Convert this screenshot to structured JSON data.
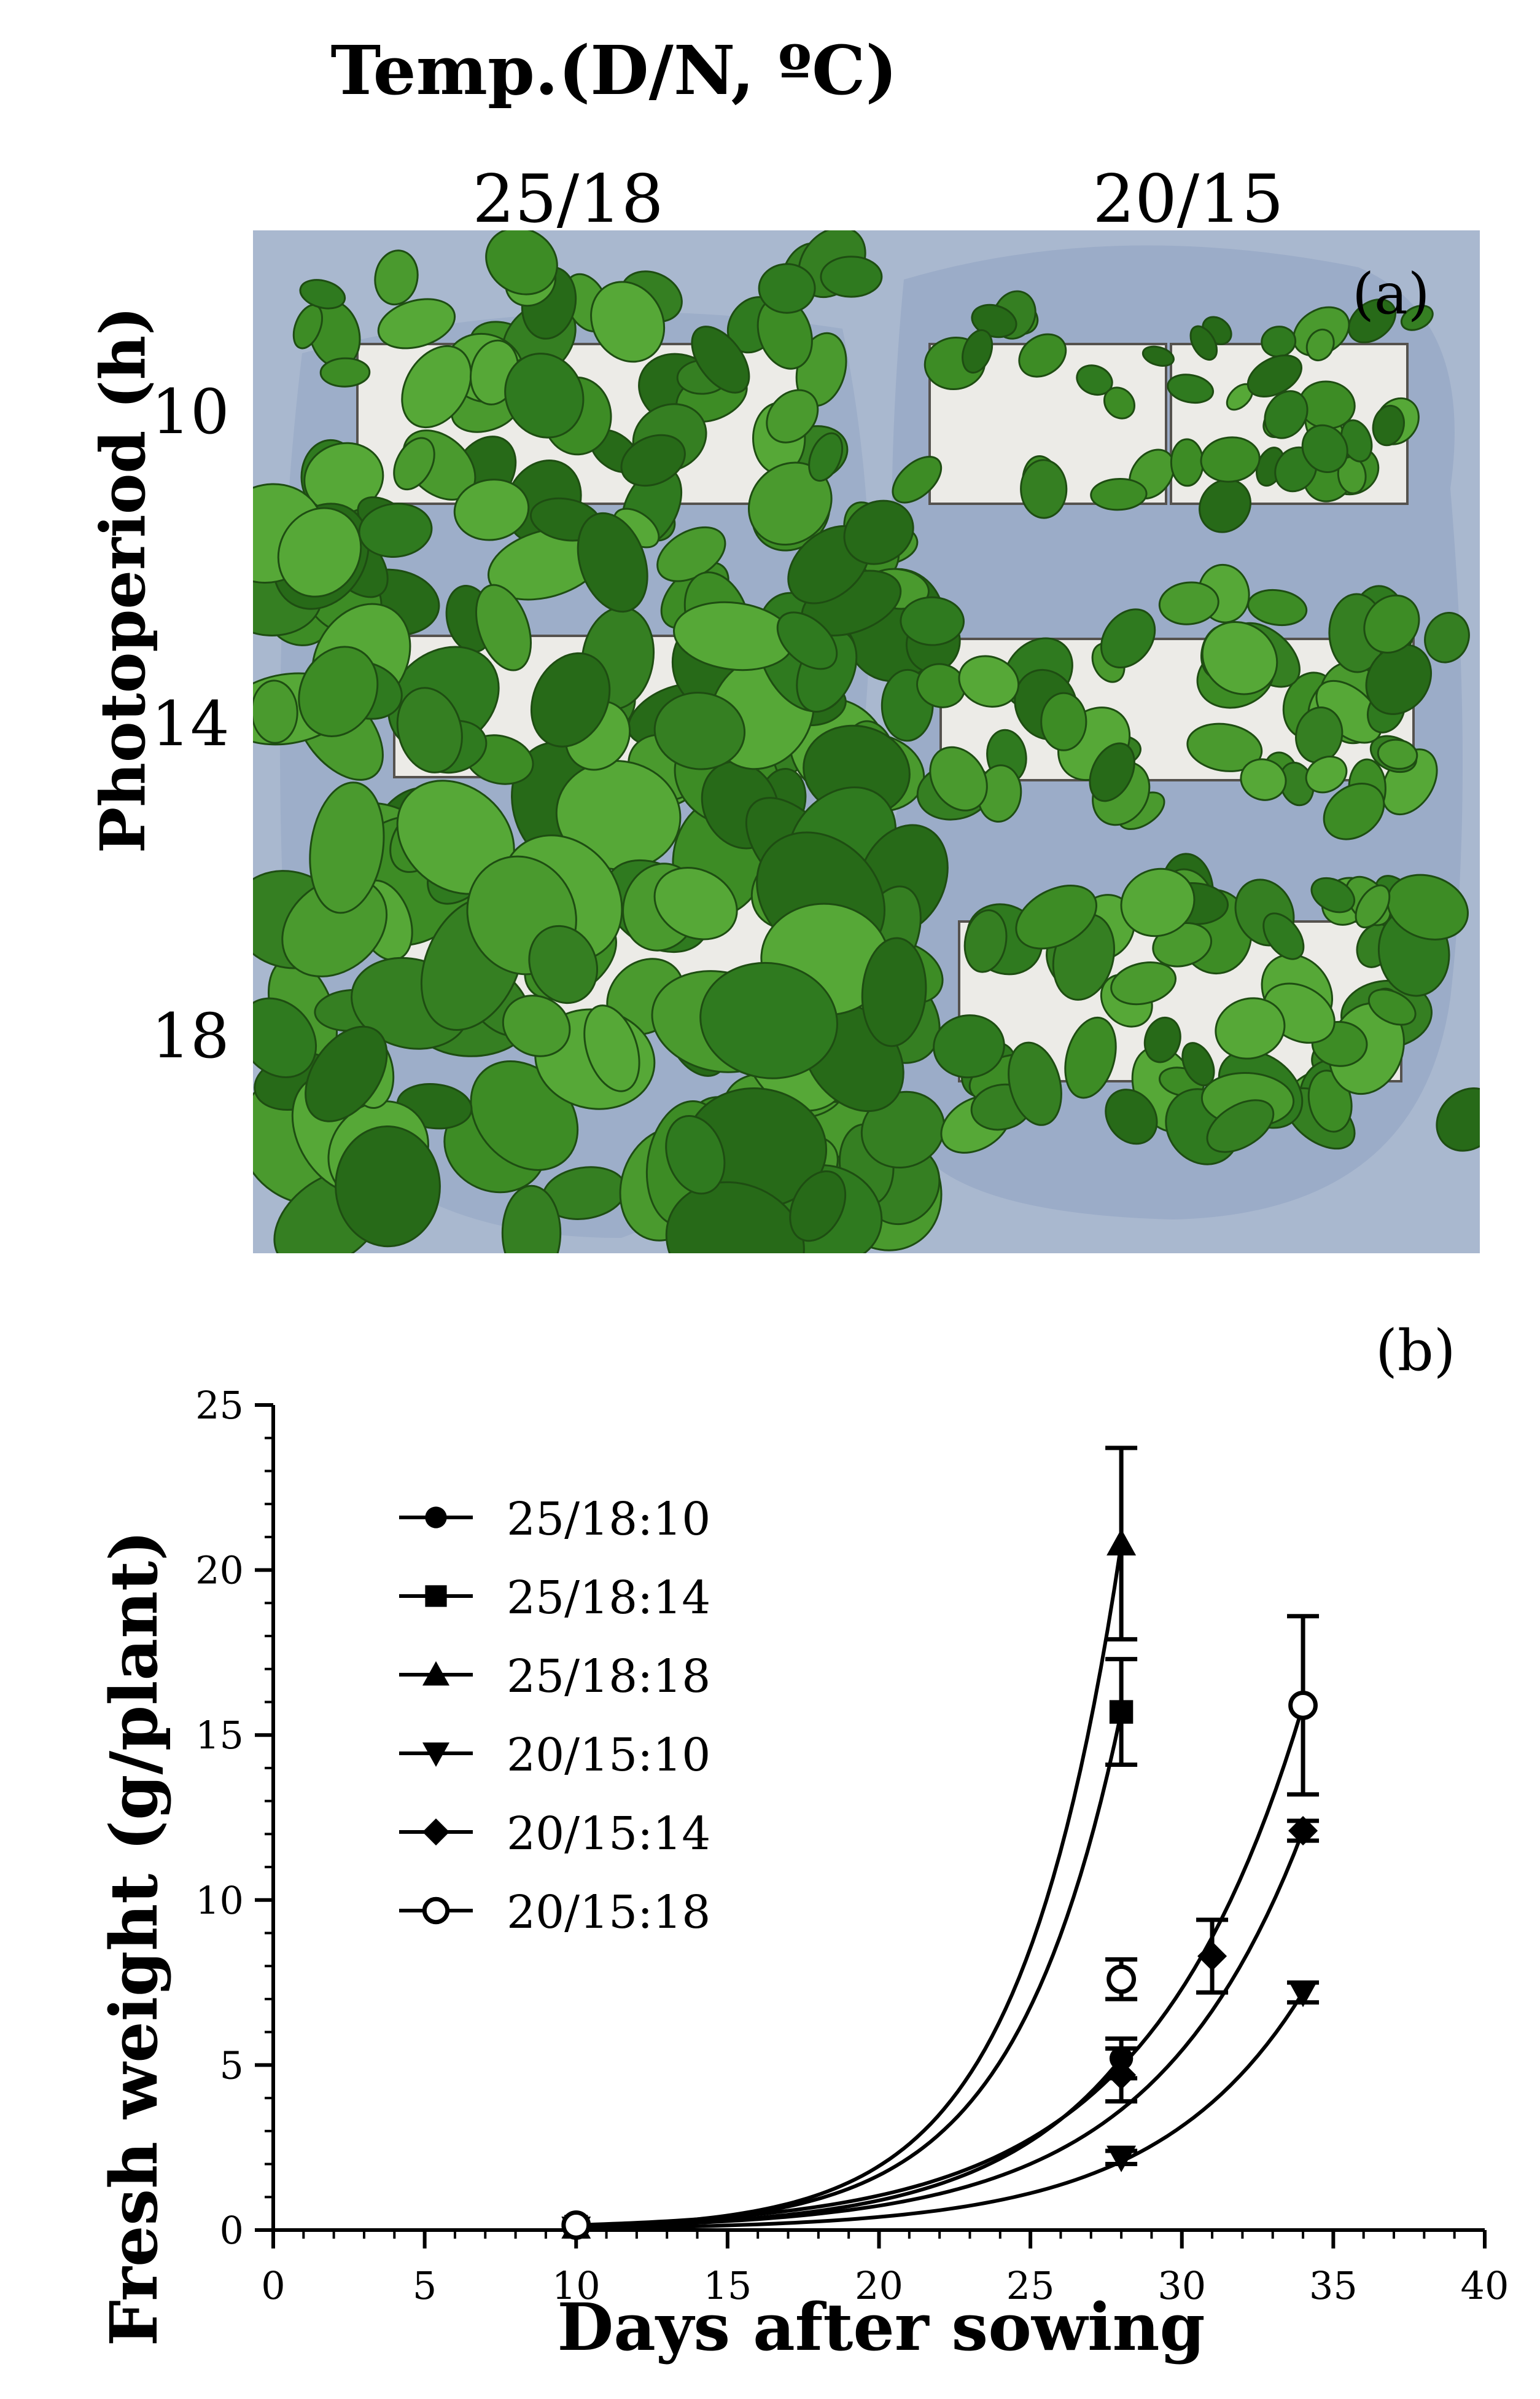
{
  "panel_a": {
    "title": "Temp.(D/N, ºC)",
    "columns": [
      "25/18",
      "20/15"
    ],
    "ylabel": "Photoperiod (h)",
    "rows": [
      "10",
      "14",
      "18"
    ],
    "label": "(a)"
  },
  "chart_data": {
    "type": "scatter",
    "panel_label": "(b)",
    "xlabel": "Days after sowing",
    "ylabel": "Fresh weight (g/plant)",
    "xlim": [
      0,
      40
    ],
    "ylim": [
      0,
      25
    ],
    "xticks": [
      0,
      5,
      10,
      15,
      20,
      25,
      30,
      35,
      40
    ],
    "yticks": [
      0,
      5,
      10,
      15,
      20,
      25
    ],
    "legend_position": "left",
    "series": [
      {
        "name": "25/18:10",
        "marker": "circle-filled",
        "x": [
          10,
          28
        ],
        "y": [
          0.1,
          5.2
        ],
        "err": [
          0,
          0.6
        ]
      },
      {
        "name": "25/18:14",
        "marker": "square-filled",
        "x": [
          10,
          28
        ],
        "y": [
          0.1,
          15.7
        ],
        "err": [
          0,
          1.6
        ]
      },
      {
        "name": "25/18:18",
        "marker": "triangle-up-filled",
        "x": [
          10,
          28
        ],
        "y": [
          0.1,
          20.8
        ],
        "err": [
          0,
          2.9
        ]
      },
      {
        "name": "20/15:10",
        "marker": "triangle-down-filled",
        "x": [
          10,
          28,
          34
        ],
        "y": [
          0.05,
          2.2,
          7.2
        ],
        "err": [
          0,
          0.2,
          0.3
        ]
      },
      {
        "name": "20/15:14",
        "marker": "diamond-filled",
        "x": [
          10,
          28,
          31,
          34
        ],
        "y": [
          0.1,
          4.7,
          8.3,
          12.1
        ],
        "err": [
          0,
          0.8,
          1.1,
          0.3
        ]
      },
      {
        "name": "20/15:18",
        "marker": "circle-open",
        "x": [
          10,
          28,
          34
        ],
        "y": [
          0.15,
          7.6,
          15.9
        ],
        "err": [
          0,
          0.6,
          2.7
        ]
      }
    ]
  }
}
